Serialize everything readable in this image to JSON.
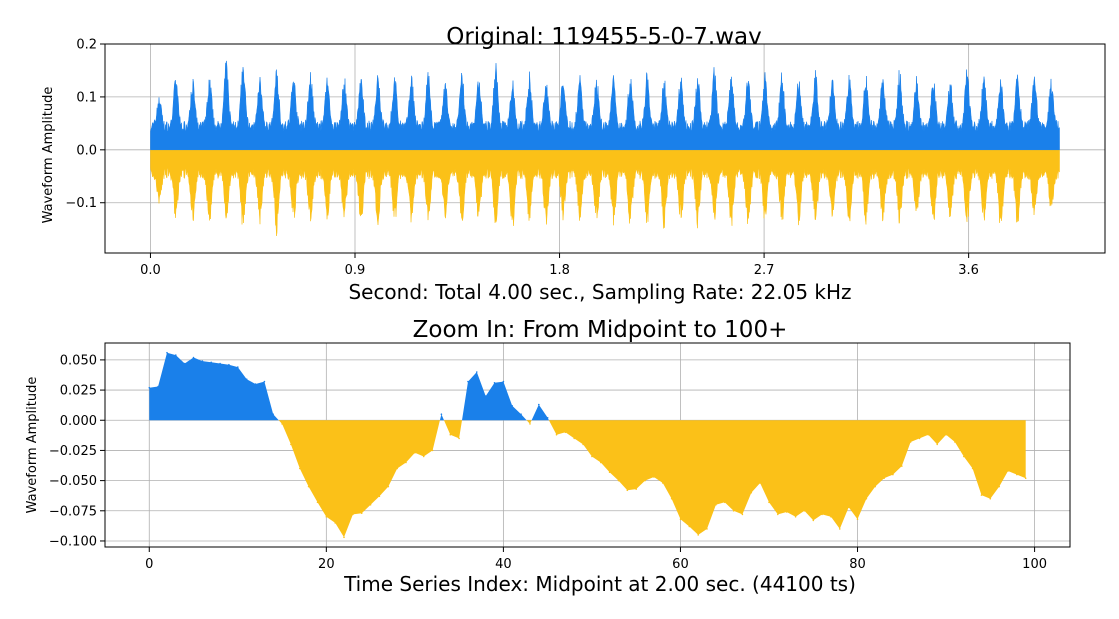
{
  "chart_data": [
    {
      "type": "area",
      "title": "Original: 119455-5-0-7.wav",
      "xlabel": "Second: Total 4.00 sec., Sampling Rate: 22.05 kHz",
      "ylabel": "Waveform Amplitude",
      "xlim": [
        -0.2,
        4.2
      ],
      "ylim": [
        -0.195,
        0.2
      ],
      "xticks": [
        "0.0",
        "0.9",
        "1.8",
        "2.7",
        "3.6"
      ],
      "xtick_values": [
        0.0,
        0.9,
        1.8,
        2.7,
        3.6
      ],
      "yticks": [
        "0.2",
        "0.1",
        "0.0",
        "−0.1"
      ],
      "ytick_values": [
        0.2,
        0.1,
        0.0,
        -0.1
      ],
      "grid": true,
      "duration": 4.0,
      "colors": {
        "positive": "#1a80ea",
        "negative": "#fbc118"
      },
      "envelope": {
        "x": [
          0.0,
          0.08,
          0.16,
          0.24,
          0.32,
          0.4,
          0.48,
          0.56,
          0.64,
          0.72,
          0.8,
          0.88,
          0.96,
          1.04,
          1.12,
          1.2,
          1.28,
          1.36,
          1.44,
          1.52,
          1.6,
          1.68,
          1.76,
          1.84,
          1.92,
          2.0,
          2.08,
          2.16,
          2.24,
          2.32,
          2.4,
          2.48,
          2.56,
          2.64,
          2.72,
          2.8,
          2.88,
          2.96,
          3.04,
          3.12,
          3.2,
          3.28,
          3.36,
          3.44,
          3.52,
          3.6,
          3.68,
          3.76,
          3.84,
          3.92,
          3.96
        ],
        "pos": [
          0.08,
          0.14,
          0.15,
          0.13,
          0.18,
          0.17,
          0.14,
          0.16,
          0.15,
          0.16,
          0.13,
          0.15,
          0.14,
          0.15,
          0.14,
          0.16,
          0.13,
          0.15,
          0.15,
          0.17,
          0.14,
          0.15,
          0.13,
          0.15,
          0.14,
          0.15,
          0.14,
          0.16,
          0.14,
          0.15,
          0.14,
          0.16,
          0.15,
          0.14,
          0.16,
          0.15,
          0.14,
          0.16,
          0.15,
          0.14,
          0.15,
          0.16,
          0.14,
          0.15,
          0.14,
          0.16,
          0.15,
          0.14,
          0.15,
          0.14,
          0.14
        ],
        "neg": [
          -0.08,
          -0.13,
          -0.14,
          -0.15,
          -0.13,
          -0.16,
          -0.14,
          -0.17,
          -0.14,
          -0.15,
          -0.13,
          -0.14,
          -0.15,
          -0.14,
          -0.15,
          -0.14,
          -0.13,
          -0.15,
          -0.14,
          -0.15,
          -0.16,
          -0.14,
          -0.15,
          -0.13,
          -0.15,
          -0.14,
          -0.15,
          -0.14,
          -0.16,
          -0.14,
          -0.15,
          -0.14,
          -0.15,
          -0.16,
          -0.14,
          -0.15,
          -0.14,
          -0.15,
          -0.14,
          -0.15,
          -0.14,
          -0.15,
          -0.13,
          -0.15,
          -0.14,
          -0.15,
          -0.14,
          -0.17,
          -0.14,
          -0.13,
          -0.12
        ]
      }
    },
    {
      "type": "area",
      "title": "Zoom In: From Midpoint to 100+",
      "xlabel": "Time Series Index: Midpoint at 2.00 sec. (44100 ts)",
      "ylabel": "Waveform Amplitude",
      "xlim": [
        -5,
        104
      ],
      "ylim": [
        -0.105,
        0.064
      ],
      "xticks": [
        "0",
        "20",
        "40",
        "60",
        "80",
        "100"
      ],
      "xtick_values": [
        0,
        20,
        40,
        60,
        80,
        100
      ],
      "yticks": [
        "0.050",
        "0.025",
        "0.000",
        "−0.025",
        "−0.050",
        "−0.075",
        "−0.100"
      ],
      "ytick_values": [
        0.05,
        0.025,
        0.0,
        -0.025,
        -0.05,
        -0.075,
        -0.1
      ],
      "grid": true,
      "colors": {
        "positive": "#1a80ea",
        "negative": "#fbc118"
      },
      "x": [
        0,
        1,
        2,
        3,
        4,
        5,
        6,
        7,
        8,
        9,
        10,
        11,
        12,
        13,
        14,
        15,
        16,
        17,
        18,
        19,
        20,
        21,
        22,
        23,
        24,
        25,
        26,
        27,
        28,
        29,
        30,
        31,
        32,
        33,
        34,
        35,
        36,
        37,
        38,
        39,
        40,
        41,
        42,
        43,
        44,
        45,
        46,
        47,
        48,
        49,
        50,
        51,
        52,
        53,
        54,
        55,
        56,
        57,
        58,
        59,
        60,
        61,
        62,
        63,
        64,
        65,
        66,
        67,
        68,
        69,
        70,
        71,
        72,
        73,
        74,
        75,
        76,
        77,
        78,
        79,
        80,
        81,
        82,
        83,
        84,
        85,
        86,
        87,
        88,
        89,
        90,
        91,
        92,
        93,
        94,
        95,
        96,
        97,
        98,
        99
      ],
      "y": [
        0.027,
        0.028,
        0.056,
        0.054,
        0.047,
        0.052,
        0.049,
        0.048,
        0.047,
        0.046,
        0.044,
        0.034,
        0.03,
        0.032,
        0.005,
        -0.003,
        -0.02,
        -0.04,
        -0.055,
        -0.068,
        -0.08,
        -0.085,
        -0.097,
        -0.078,
        -0.077,
        -0.07,
        -0.063,
        -0.055,
        -0.04,
        -0.035,
        -0.027,
        -0.03,
        -0.025,
        0.005,
        -0.012,
        -0.015,
        0.032,
        0.04,
        0.02,
        0.031,
        0.032,
        0.012,
        0.005,
        -0.003,
        0.013,
        0.002,
        -0.012,
        -0.01,
        -0.015,
        -0.02,
        -0.03,
        -0.035,
        -0.043,
        -0.05,
        -0.058,
        -0.057,
        -0.05,
        -0.047,
        -0.052,
        -0.065,
        -0.082,
        -0.088,
        -0.095,
        -0.09,
        -0.07,
        -0.068,
        -0.075,
        -0.078,
        -0.06,
        -0.052,
        -0.068,
        -0.078,
        -0.076,
        -0.08,
        -0.075,
        -0.083,
        -0.078,
        -0.08,
        -0.09,
        -0.072,
        -0.082,
        -0.065,
        -0.055,
        -0.048,
        -0.045,
        -0.038,
        -0.018,
        -0.015,
        -0.012,
        -0.02,
        -0.012,
        -0.018,
        -0.03,
        -0.04,
        -0.062,
        -0.065,
        -0.055,
        -0.042,
        -0.045,
        -0.048
      ]
    }
  ]
}
